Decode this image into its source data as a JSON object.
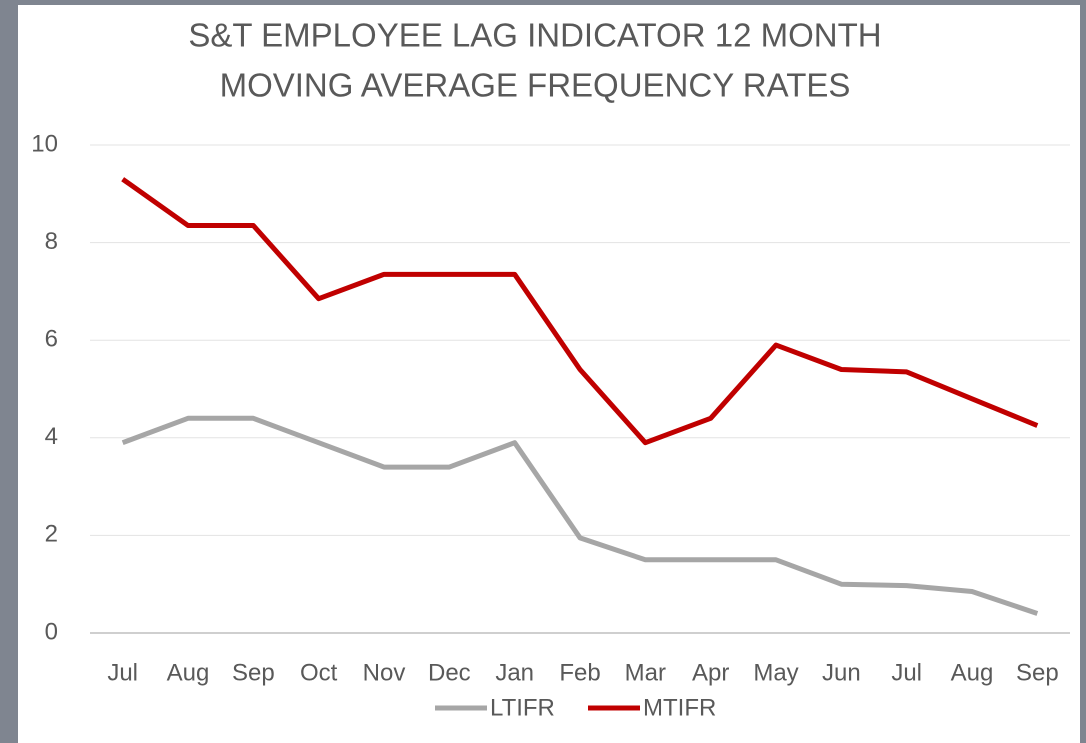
{
  "chart_data": {
    "type": "line",
    "title": [
      "S&T EMPLOYEE LAG INDICATOR 12 MONTH",
      "MOVING AVERAGE FREQUENCY RATES"
    ],
    "categories": [
      "Jul",
      "Aug",
      "Sep",
      "Oct",
      "Nov",
      "Dec",
      "Jan",
      "Feb",
      "Mar",
      "Apr",
      "May",
      "Jun",
      "Jul",
      "Aug",
      "Sep"
    ],
    "series": [
      {
        "name": "LTIFR",
        "color": "#a6a6a6",
        "values": [
          3.9,
          4.4,
          4.4,
          3.9,
          3.4,
          3.4,
          3.9,
          1.95,
          1.5,
          1.5,
          1.5,
          1.0,
          0.97,
          0.85,
          0.4
        ]
      },
      {
        "name": "MTIFR",
        "color": "#c00000",
        "values": [
          9.3,
          8.35,
          8.35,
          6.85,
          7.35,
          7.35,
          7.35,
          5.4,
          3.9,
          4.4,
          5.9,
          5.4,
          5.35,
          4.8,
          4.25
        ]
      }
    ],
    "ylim": [
      0,
      10
    ],
    "yticks": [
      0,
      2,
      4,
      6,
      8,
      10
    ],
    "grid": true,
    "legend": "bottom"
  }
}
